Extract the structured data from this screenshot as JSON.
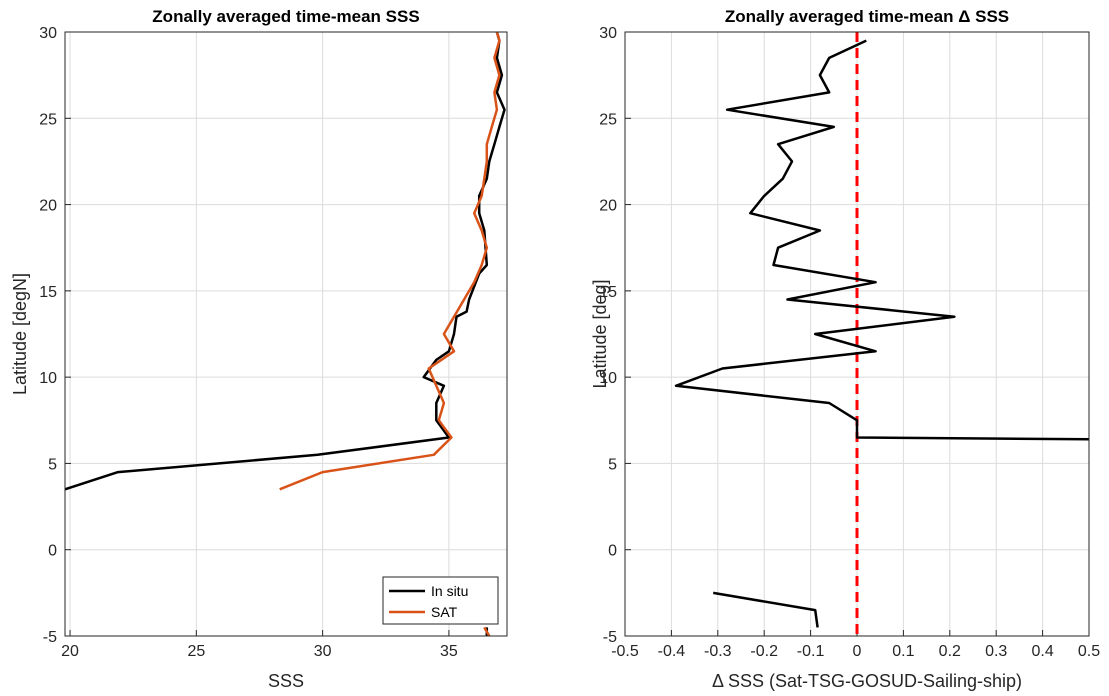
{
  "chart_data": [
    {
      "type": "line",
      "title": "Zonally averaged time-mean SSS",
      "xlabel": "SSS",
      "ylabel": "Latitude [degN]",
      "xlim": [
        19.8,
        37.3
      ],
      "ylim": [
        -5,
        30
      ],
      "xticks": [
        "20",
        "25",
        "30",
        "35"
      ],
      "yticks": [
        "-5",
        "0",
        "5",
        "10",
        "15",
        "20",
        "25",
        "30"
      ],
      "grid": true,
      "legend": "bottom-right",
      "series": [
        {
          "name": "In situ",
          "color": "#000000",
          "segments": [
            [
              [
                36.5,
                -4.5
              ],
              [
                36.5,
                -5
              ]
            ],
            [
              [
                19.8,
                3.5
              ],
              [
                21.9,
                4.5
              ],
              [
                29.8,
                5.5
              ],
              [
                35.0,
                6.5
              ],
              [
                34.5,
                7.5
              ],
              [
                34.5,
                8.5
              ],
              [
                34.8,
                9.5
              ],
              [
                34.0,
                10.0
              ],
              [
                34.5,
                11.0
              ],
              [
                35.0,
                11.5
              ],
              [
                35.2,
                12.5
              ],
              [
                35.3,
                13.5
              ],
              [
                35.7,
                13.8
              ],
              [
                35.8,
                14.5
              ],
              [
                36.2,
                16.0
              ],
              [
                36.5,
                16.5
              ],
              [
                36.4,
                18.5
              ],
              [
                36.2,
                19.5
              ],
              [
                36.2,
                20.5
              ],
              [
                36.5,
                21.5
              ],
              [
                36.6,
                22.5
              ],
              [
                36.8,
                23.5
              ],
              [
                37.0,
                24.5
              ],
              [
                37.2,
                25.5
              ],
              [
                36.9,
                26.5
              ],
              [
                37.1,
                27.5
              ],
              [
                36.9,
                28.5
              ],
              [
                37.0,
                29.5
              ],
              [
                36.9,
                30
              ]
            ]
          ]
        },
        {
          "name": "SAT",
          "color": "#d95319",
          "segments": [
            [
              [
                36.4,
                -4.5
              ],
              [
                36.6,
                -5
              ]
            ],
            [
              [
                28.3,
                3.5
              ],
              [
                30.0,
                4.5
              ],
              [
                34.4,
                5.5
              ],
              [
                35.1,
                6.5
              ],
              [
                34.6,
                7.5
              ],
              [
                34.8,
                8.5
              ],
              [
                34.5,
                9.5
              ],
              [
                34.2,
                10.5
              ],
              [
                35.2,
                11.5
              ],
              [
                34.8,
                12.5
              ],
              [
                35.2,
                13.5
              ],
              [
                35.6,
                14.5
              ],
              [
                36.0,
                15.5
              ],
              [
                36.3,
                16.5
              ],
              [
                36.5,
                17.5
              ],
              [
                36.3,
                18.5
              ],
              [
                36.0,
                19.5
              ],
              [
                36.3,
                20.5
              ],
              [
                36.4,
                21.5
              ],
              [
                36.5,
                22.5
              ],
              [
                36.5,
                23.5
              ],
              [
                36.7,
                24.5
              ],
              [
                36.9,
                25.5
              ],
              [
                36.8,
                26.5
              ],
              [
                37.0,
                27.5
              ],
              [
                36.8,
                28.5
              ],
              [
                37.0,
                29.5
              ],
              [
                36.9,
                30
              ]
            ]
          ]
        }
      ]
    },
    {
      "type": "line",
      "title": "Zonally averaged time-mean Δ SSS",
      "xlabel": "Δ SSS (Sat-TSG-GOSUD-Sailing-ship)",
      "ylabel": "Latitude [deg]",
      "xlim": [
        -0.5,
        0.5
      ],
      "ylim": [
        -5,
        30
      ],
      "xticks": [
        "-0.5",
        "-0.4",
        "-0.3",
        "-0.2",
        "-0.1",
        "0",
        "0.1",
        "0.2",
        "0.3",
        "0.4",
        "0.5"
      ],
      "yticks": [
        "-5",
        "0",
        "5",
        "10",
        "15",
        "20",
        "25",
        "30"
      ],
      "grid": true,
      "reference_line": {
        "x": 0,
        "color": "#ff0000",
        "style": "dashed"
      },
      "series": [
        {
          "color": "#000000",
          "segments": [
            [
              [
                -0.31,
                -2.5
              ],
              [
                -0.09,
                -3.5
              ],
              [
                -0.085,
                -4.5
              ]
            ],
            [
              [
                0.5,
                6.4
              ],
              [
                0.0,
                6.5
              ],
              [
                0.0,
                7.5
              ],
              [
                -0.06,
                8.5
              ],
              [
                -0.39,
                9.5
              ],
              [
                -0.29,
                10.5
              ],
              [
                0.04,
                11.5
              ],
              [
                -0.09,
                12.5
              ],
              [
                0.21,
                13.5
              ],
              [
                -0.15,
                14.5
              ],
              [
                0.04,
                15.5
              ],
              [
                -0.18,
                16.5
              ],
              [
                -0.17,
                17.5
              ],
              [
                -0.08,
                18.5
              ],
              [
                -0.23,
                19.5
              ],
              [
                -0.2,
                20.5
              ],
              [
                -0.16,
                21.5
              ],
              [
                -0.14,
                22.5
              ],
              [
                -0.17,
                23.5
              ],
              [
                -0.05,
                24.5
              ],
              [
                -0.28,
                25.5
              ],
              [
                -0.06,
                26.5
              ],
              [
                -0.08,
                27.5
              ],
              [
                -0.06,
                28.5
              ],
              [
                0.02,
                29.5
              ]
            ]
          ]
        }
      ]
    }
  ]
}
